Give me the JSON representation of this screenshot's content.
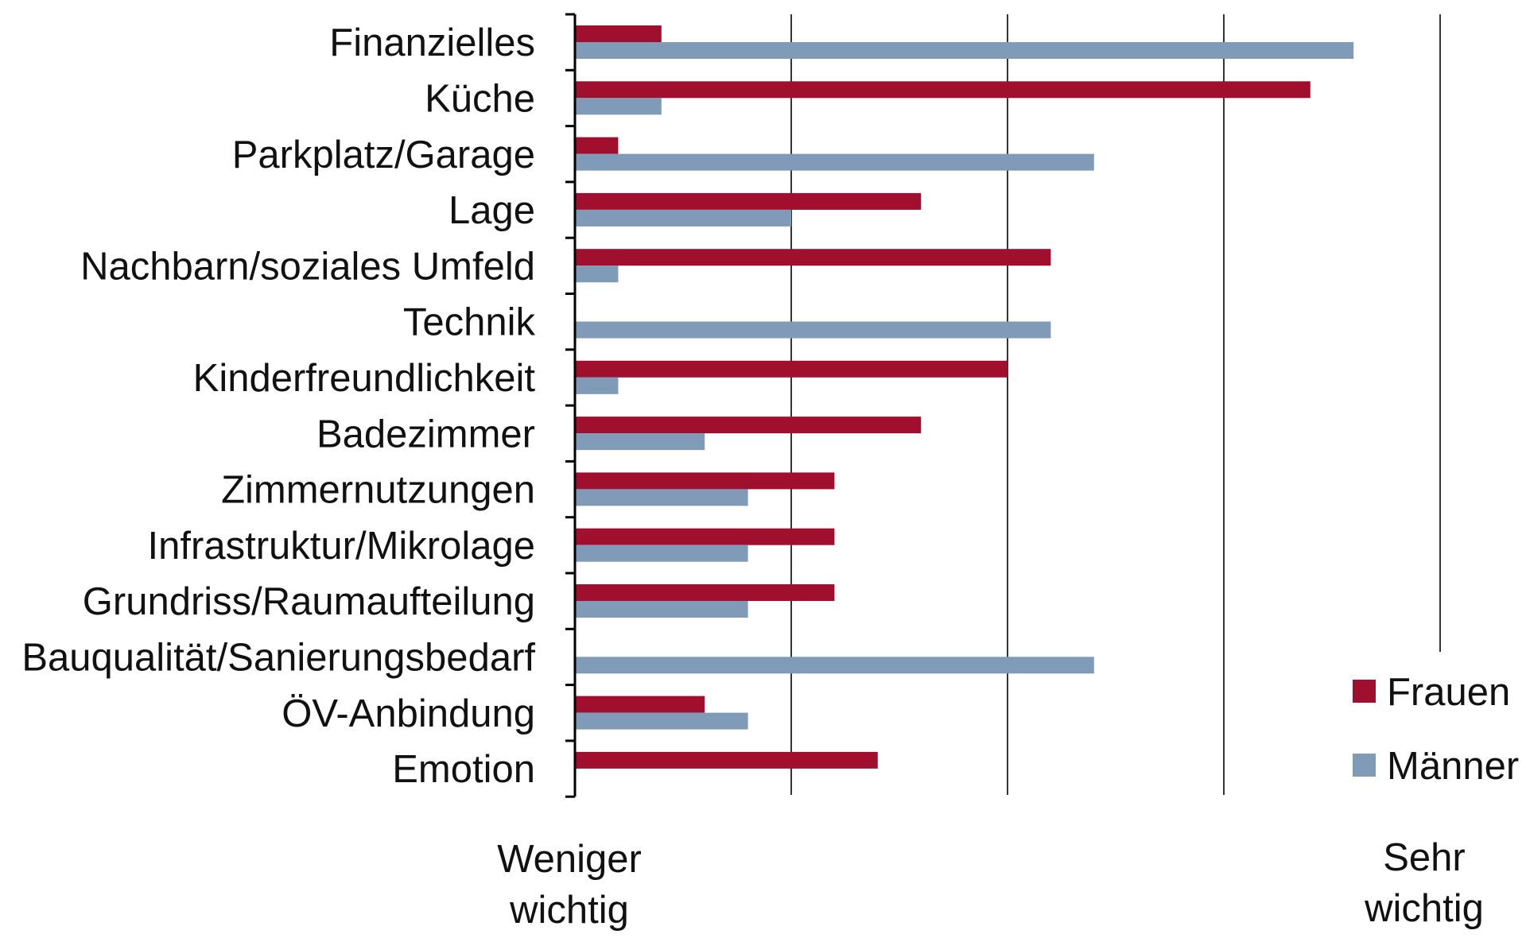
{
  "chart_data": {
    "type": "bar",
    "orientation": "horizontal",
    "title": "",
    "xlabel": "",
    "ylabel": "",
    "xlim": [
      0,
      4
    ],
    "x_gridlines": [
      1,
      2,
      3,
      4
    ],
    "grid": true,
    "legend_position": "bottom-right",
    "scale_end_labels": {
      "low": [
        "Weniger",
        "wichtig"
      ],
      "high": [
        "Sehr",
        "wichtig"
      ]
    },
    "categories": [
      "Finanzielles",
      "Küche",
      "Parkplatz/Garage",
      "Lage",
      "Nachbarn/soziales Umfeld",
      "Technik",
      "Kinderfreundlichkeit",
      "Badezimmer",
      "Zimmernutzungen",
      "Infrastruktur/Mikrolage",
      "Grundriss/Raumaufteilung",
      "Bauqualität/Sanierungsbedarf",
      "ÖV-Anbindung",
      "Emotion"
    ],
    "series": [
      {
        "name": "Frauen",
        "color": "#a0102e",
        "values": [
          0.4,
          3.4,
          0.2,
          1.6,
          2.2,
          0,
          2.0,
          1.6,
          1.2,
          1.2,
          1.2,
          0,
          0.6,
          1.4
        ]
      },
      {
        "name": "Männer",
        "color": "#7f9bb7",
        "values": [
          3.6,
          0.4,
          2.4,
          1.0,
          0.2,
          2.2,
          0.2,
          0.6,
          0.8,
          0.8,
          0.8,
          2.4,
          0.8,
          0
        ]
      }
    ]
  }
}
